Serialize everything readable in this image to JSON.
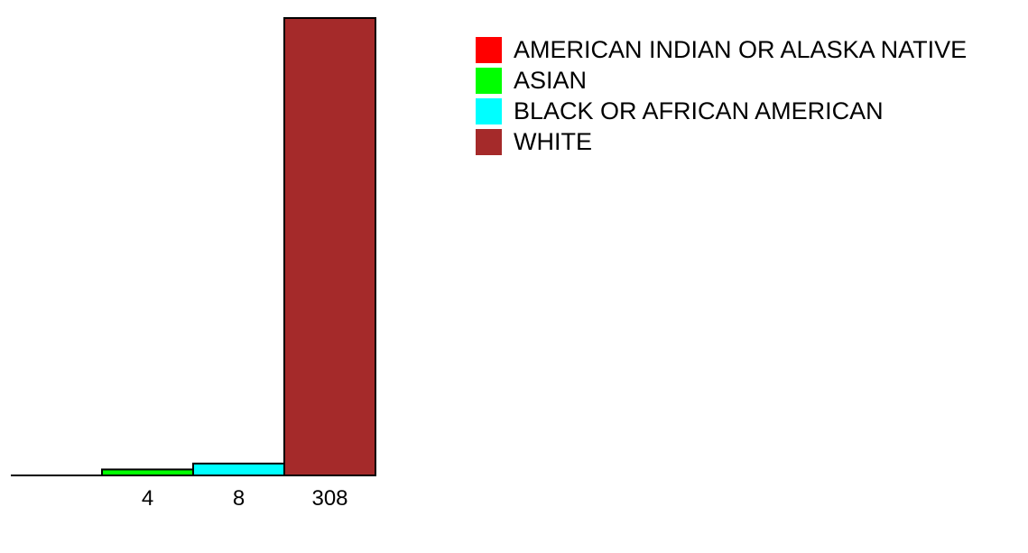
{
  "chart_data": {
    "type": "bar",
    "categories": [
      "AMERICAN INDIAN OR ALASKA NATIVE",
      "ASIAN",
      "BLACK OR AFRICAN AMERICAN",
      "WHITE"
    ],
    "values": [
      0,
      4,
      8,
      308
    ],
    "value_labels": [
      "",
      "4",
      "8",
      "308"
    ],
    "colors": [
      "#ff0000",
      "#00ff00",
      "#00ffff",
      "#a52a2a"
    ],
    "ylim": [
      0,
      308
    ],
    "grid": false,
    "legend_position": "top-right",
    "title": "",
    "xlabel": "",
    "ylabel": ""
  },
  "legend": {
    "items": [
      {
        "label": "AMERICAN INDIAN OR ALASKA NATIVE",
        "color": "#ff0000"
      },
      {
        "label": "ASIAN",
        "color": "#00ff00"
      },
      {
        "label": "BLACK OR AFRICAN AMERICAN",
        "color": "#00ffff"
      },
      {
        "label": "WHITE",
        "color": "#a52a2a"
      }
    ]
  }
}
